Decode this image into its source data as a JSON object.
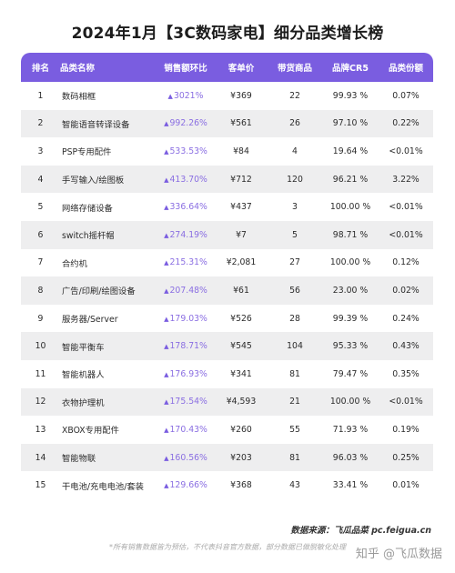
{
  "title": "2024年1月【3C数码家电】细分品类增长榜",
  "header": {
    "rank": "排名",
    "name": "品类名称",
    "growth": "销售额环比",
    "price": "客单价",
    "products": "带货商品",
    "cr5": "品牌CR5",
    "share": "品类份额"
  },
  "rows": [
    {
      "rank": "1",
      "name": "数码相框",
      "growth": "3021%",
      "price": "¥369",
      "products": "22",
      "cr5": "99.93 %",
      "share": "0.07%"
    },
    {
      "rank": "2",
      "name": "智能语音转译设备",
      "growth": "992.26%",
      "price": "¥561",
      "products": "26",
      "cr5": "97.10 %",
      "share": "0.22%"
    },
    {
      "rank": "3",
      "name": "PSP专用配件",
      "growth": "533.53%",
      "price": "¥84",
      "products": "4",
      "cr5": "19.64 %",
      "share": "<0.01%"
    },
    {
      "rank": "4",
      "name": "手写输入/绘图板",
      "growth": "413.70%",
      "price": "¥712",
      "products": "120",
      "cr5": "96.21 %",
      "share": "3.22%"
    },
    {
      "rank": "5",
      "name": "网络存储设备",
      "growth": "336.64%",
      "price": "¥437",
      "products": "3",
      "cr5": "100.00 %",
      "share": "<0.01%"
    },
    {
      "rank": "6",
      "name": "switch摇杆帽",
      "growth": "274.19%",
      "price": "¥7",
      "products": "5",
      "cr5": "98.71 %",
      "share": "<0.01%"
    },
    {
      "rank": "7",
      "name": "合约机",
      "growth": "215.31%",
      "price": "¥2,081",
      "products": "27",
      "cr5": "100.00 %",
      "share": "0.12%"
    },
    {
      "rank": "8",
      "name": "广告/印刷/绘图设备",
      "growth": "207.48%",
      "price": "¥61",
      "products": "56",
      "cr5": "23.00 %",
      "share": "0.02%"
    },
    {
      "rank": "9",
      "name": "服务器/Server",
      "growth": "179.03%",
      "price": "¥526",
      "products": "28",
      "cr5": "99.39 %",
      "share": "0.24%"
    },
    {
      "rank": "10",
      "name": "智能平衡车",
      "growth": "178.71%",
      "price": "¥545",
      "products": "104",
      "cr5": "95.33 %",
      "share": "0.43%"
    },
    {
      "rank": "11",
      "name": "智能机器人",
      "growth": "176.93%",
      "price": "¥341",
      "products": "81",
      "cr5": "79.47 %",
      "share": "0.35%"
    },
    {
      "rank": "12",
      "name": "衣物护理机",
      "growth": "175.54%",
      "price": "¥4,593",
      "products": "21",
      "cr5": "100.00 %",
      "share": "<0.01%"
    },
    {
      "rank": "13",
      "name": "XBOX专用配件",
      "growth": "170.43%",
      "price": "¥260",
      "products": "55",
      "cr5": "71.93 %",
      "share": "0.19%"
    },
    {
      "rank": "14",
      "name": "智能物联",
      "growth": "160.56%",
      "price": "¥203",
      "products": "81",
      "cr5": "96.03 %",
      "share": "0.25%"
    },
    {
      "rank": "15",
      "name": "干电池/充电电池/套装",
      "growth": "129.66%",
      "price": "¥368",
      "products": "43",
      "cr5": "33.41 %",
      "share": "0.01%"
    }
  ],
  "source": "数据来源：飞瓜品菜 pc.feigua.cn",
  "note": "*所有销售数据皆为预估，不代表抖音官方数据，部分数据已做脱敏化处理",
  "watermark": "知乎 @飞瓜数据",
  "colors": {
    "accent": "#7a5de0",
    "growth_text": "#8a6ee2",
    "stripe": "#eeeeef"
  }
}
